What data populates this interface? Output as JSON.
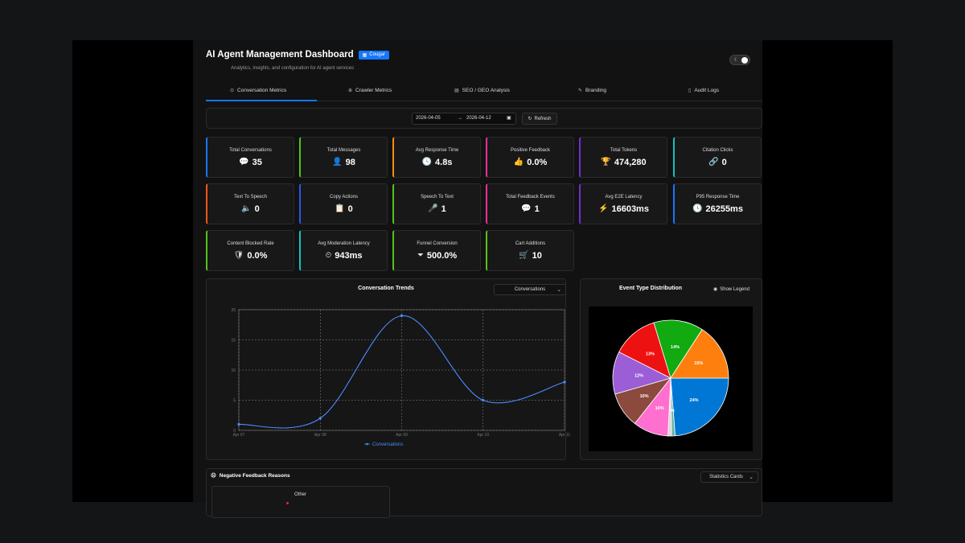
{
  "header": {
    "title": "AI Agent Management Dashboard",
    "badge": "Cougar",
    "subtitle": "Analytics, insights, and configuration for AI agent services"
  },
  "tabs": [
    {
      "label": "Conversation Metrics",
      "icon": "chat-icon",
      "active": true
    },
    {
      "label": "Crawler Metrics",
      "icon": "globe-icon",
      "active": false
    },
    {
      "label": "SEO / GEO Analysis",
      "icon": "document-search-icon",
      "active": false
    },
    {
      "label": "Branding",
      "icon": "brush-icon",
      "active": false
    },
    {
      "label": "Audit Logs",
      "icon": "file-icon",
      "active": false
    }
  ],
  "filter": {
    "start_date": "2026-04-05",
    "arrow": "→",
    "end_date": "2026-04-12",
    "refresh_label": "Refresh"
  },
  "cards": [
    {
      "label": "Total Conversations",
      "value": "35",
      "color": "#1677ff",
      "icon": "chat-bubble-icon",
      "glyph": "💬"
    },
    {
      "label": "Total Messages",
      "value": "98",
      "color": "#52c41a",
      "icon": "user-icon",
      "glyph": "👤"
    },
    {
      "label": "Avg Response Time",
      "value": "4.8s",
      "color": "#fa8c16",
      "icon": "clock-icon",
      "glyph": "🕓"
    },
    {
      "label": "Positive Feedback",
      "value": "0.0%",
      "color": "#eb2f96",
      "icon": "thumbs-up-icon",
      "glyph": "👍"
    },
    {
      "label": "Total Tokens",
      "value": "474,280",
      "color": "#722ed1",
      "icon": "trophy-icon",
      "glyph": "🏆"
    },
    {
      "label": "Citation Clicks",
      "value": "0",
      "color": "#13c2c2",
      "icon": "link-icon",
      "glyph": "🔗"
    },
    {
      "label": "Text To Speech",
      "value": "0",
      "color": "#fa541c",
      "icon": "speaker-icon",
      "glyph": "🔈"
    },
    {
      "label": "Copy Actions",
      "value": "0",
      "color": "#2f54eb",
      "icon": "copy-icon",
      "glyph": "📋"
    },
    {
      "label": "Speech To Text",
      "value": "1",
      "color": "#52c41a",
      "icon": "microphone-icon",
      "glyph": "🎤"
    },
    {
      "label": "Total Feedback Events",
      "value": "1",
      "color": "#eb2f96",
      "icon": "message-icon",
      "glyph": "💬"
    },
    {
      "label": "Avg E2E Latency",
      "value": "16603ms",
      "color": "#722ed1",
      "icon": "lightning-icon",
      "glyph": "⚡"
    },
    {
      "label": "P95 Response Time",
      "value": "26255ms",
      "color": "#1677ff",
      "icon": "clock-icon",
      "glyph": "🕓"
    },
    {
      "label": "Content Blocked Rate",
      "value": "0.0%",
      "color": "#52c41a",
      "icon": "shield-icon",
      "glyph": "🛡"
    },
    {
      "label": "Avg Moderation Latency",
      "value": "943ms",
      "color": "#13c2c2",
      "icon": "dashboard-icon",
      "glyph": "⏲"
    },
    {
      "label": "Funnel Conversion",
      "value": "500.0%",
      "color": "#52c41a",
      "icon": "funnel-icon",
      "glyph": "⏷"
    },
    {
      "label": "Cart Additions",
      "value": "10",
      "color": "#52c41a",
      "icon": "cart-icon",
      "glyph": "🛒"
    }
  ],
  "trends": {
    "title": "Conversation Trends",
    "select_value": "Conversations",
    "legend": "Conversations"
  },
  "pie_panel": {
    "title": "Event Type Distribution",
    "show_legend_label": "Show Legend"
  },
  "negative": {
    "title": "Negative Feedback Reasons",
    "select_value": "Statistics Cards",
    "card_label": "Other"
  },
  "chart_data": [
    {
      "type": "line",
      "title": "Conversation Trends",
      "x": [
        "Apr 07",
        "Apr 08",
        "Apr 09",
        "Apr 10",
        "Apr 11"
      ],
      "series": [
        {
          "name": "Conversations",
          "values": [
            1,
            2,
            19,
            5,
            8
          ],
          "color": "#4a8cff"
        }
      ],
      "ylim": [
        0,
        20
      ],
      "yticks": [
        0,
        5,
        10,
        15,
        20
      ],
      "grid": true,
      "legend": "bottom"
    },
    {
      "type": "pie",
      "title": "Event Type Distribution",
      "slices": [
        {
          "value": 24,
          "label": "24%",
          "color": "#0077d4"
        },
        {
          "value": 1,
          "label": "1%",
          "color": "#6bb5a0"
        },
        {
          "value": 1,
          "label": "1%",
          "color": "#d8d8d8"
        },
        {
          "value": 10,
          "label": "10%",
          "color": "#ff6fd0"
        },
        {
          "value": 10,
          "label": "10%",
          "color": "#8b4a3d"
        },
        {
          "value": 12,
          "label": "12%",
          "color": "#9b5ed6"
        },
        {
          "value": 13,
          "label": "13%",
          "color": "#ee1111"
        },
        {
          "value": 14,
          "label": "14%",
          "color": "#11aa11"
        },
        {
          "value": 16,
          "label": "16%",
          "color": "#ff7f0e"
        }
      ]
    }
  ]
}
